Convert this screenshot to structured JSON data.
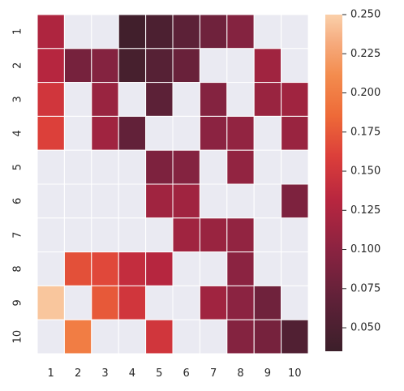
{
  "chart_data": {
    "type": "heatmap",
    "x_labels": [
      "1",
      "2",
      "3",
      "4",
      "5",
      "6",
      "7",
      "8",
      "9",
      "10"
    ],
    "y_labels": [
      "1",
      "2",
      "3",
      "4",
      "5",
      "6",
      "7",
      "8",
      "9",
      "10"
    ],
    "values": [
      [
        0.125,
        null,
        null,
        0.04,
        0.05,
        0.065,
        0.08,
        0.095,
        null,
        null
      ],
      [
        0.13,
        0.085,
        0.095,
        0.045,
        0.06,
        0.075,
        null,
        null,
        0.115,
        null
      ],
      [
        0.15,
        null,
        0.11,
        null,
        0.065,
        null,
        0.095,
        null,
        0.11,
        0.115
      ],
      [
        0.16,
        null,
        0.115,
        0.07,
        null,
        null,
        0.1,
        0.105,
        null,
        0.11
      ],
      [
        null,
        null,
        null,
        null,
        0.09,
        0.095,
        null,
        0.105,
        null,
        null
      ],
      [
        null,
        null,
        null,
        null,
        0.115,
        0.115,
        null,
        null,
        null,
        0.09
      ],
      [
        null,
        null,
        null,
        null,
        null,
        0.115,
        0.11,
        0.105,
        null,
        null
      ],
      [
        null,
        0.17,
        0.165,
        0.14,
        0.13,
        null,
        null,
        0.1,
        null,
        null
      ],
      [
        0.245,
        null,
        0.175,
        0.15,
        null,
        null,
        0.115,
        0.1,
        0.08,
        null
      ],
      [
        null,
        0.2,
        null,
        null,
        0.15,
        null,
        null,
        0.095,
        0.085,
        0.055
      ]
    ],
    "colorbar": {
      "min": 0.035,
      "max": 0.25,
      "ticks": [
        0.05,
        0.075,
        0.1,
        0.125,
        0.15,
        0.175,
        0.2,
        0.225,
        0.25
      ],
      "tick_labels": [
        "0.050",
        "0.075",
        "0.100",
        "0.125",
        "0.150",
        "0.175",
        "0.200",
        "0.225",
        "0.250"
      ]
    },
    "colormap": "rocket",
    "missing_color": "#eaeaf2",
    "grid_color": "#ffffff",
    "title": "",
    "xlabel": "",
    "ylabel": ""
  }
}
